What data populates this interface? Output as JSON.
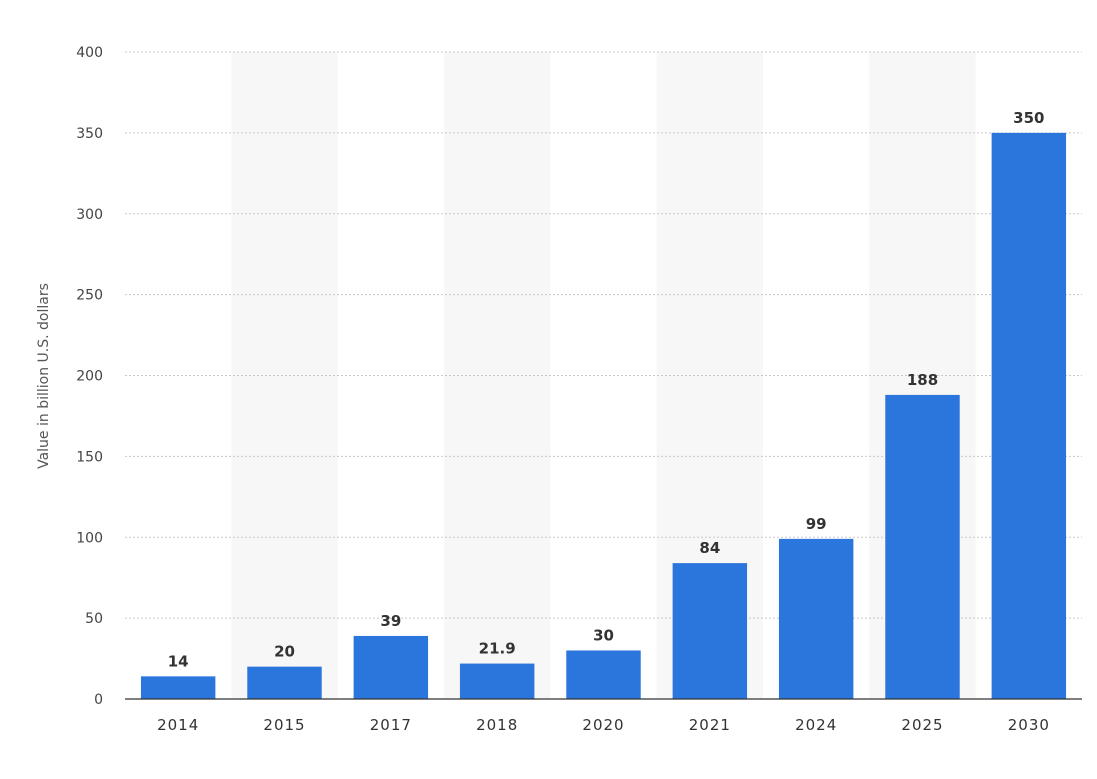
{
  "chart_data": {
    "type": "bar",
    "categories": [
      "2014",
      "2015",
      "2017",
      "2018",
      "2020",
      "2021",
      "2024",
      "2025",
      "2030"
    ],
    "values": [
      14,
      20,
      39,
      21.9,
      30,
      84,
      99,
      188,
      350
    ],
    "data_labels": [
      "14",
      "20",
      "39",
      "21.9",
      "30",
      "84",
      "99",
      "188",
      "350"
    ],
    "title": "",
    "xlabel": "",
    "ylabel": "Value in billion U.S. dollars",
    "ylim": [
      0,
      400
    ],
    "yticks": [
      0,
      50,
      100,
      150,
      200,
      250,
      300,
      350,
      400
    ],
    "grid": true,
    "alternating_column_shading": true,
    "colors": {
      "bar": "#2a76dd",
      "grid": "#c8c8c8",
      "axis": "#333333",
      "shade": "#f7f7f7"
    }
  }
}
